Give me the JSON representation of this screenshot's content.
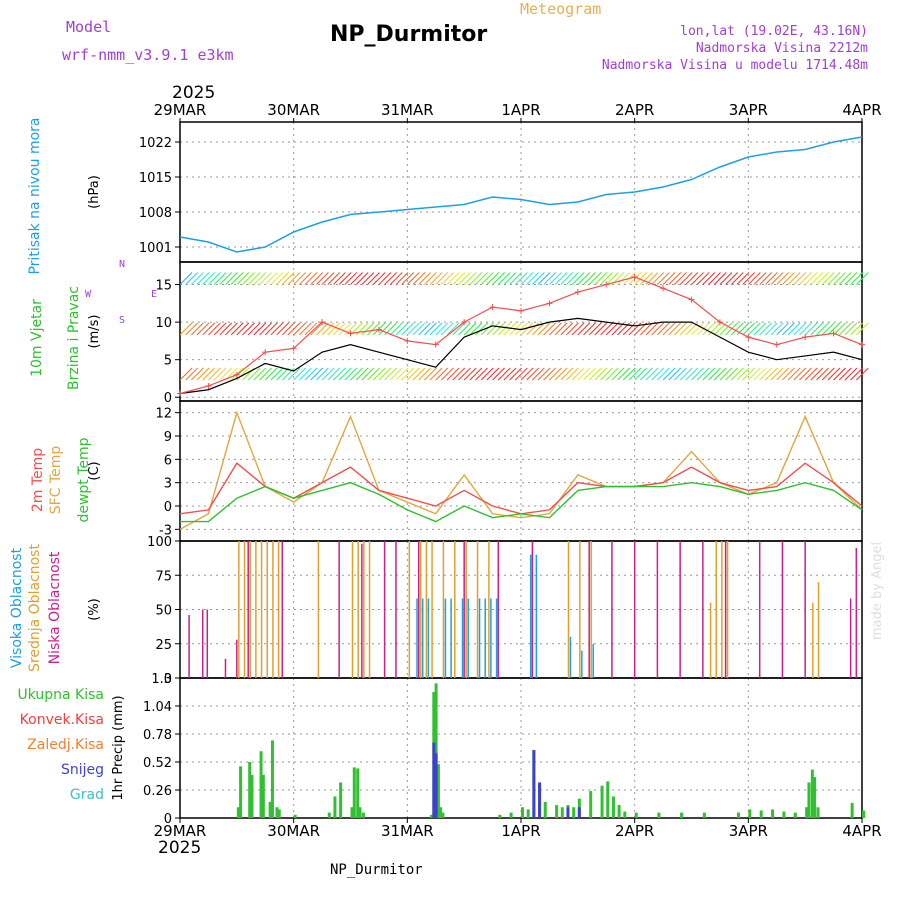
{
  "header": {
    "model_label": "Model",
    "model_name": "wrf-nmm_v3.9.1 e3km",
    "station": "NP_Durmitor",
    "meteogram": "Meteogram",
    "lonlat": "lon,lat (19.02E, 43.16N)",
    "altitude": "Nadmorska Visina 2212m",
    "model_altitude": "Nadmorska Visina u modelu 1714.48m"
  },
  "footer": {
    "station": "NP_Durmitor",
    "watermark": "made by Angel"
  },
  "time_axis": {
    "year": "2025",
    "labels": [
      "29MAR",
      "30MAR",
      "31MAR",
      "1APR",
      "2APR",
      "3APR",
      "4APR"
    ]
  },
  "colors": {
    "pressure": "#1ea0e0",
    "wind_speed": "#000000",
    "wind_gust": "#f05050",
    "temp2m": "#f05050",
    "sfc_temp": "#e0a840",
    "dewpt": "#30c030",
    "high_cloud": "#20a0e0",
    "mid_cloud": "#e0a030",
    "low_cloud": "#c8208c",
    "rain_total": "#30c030",
    "rain_conv": "#f04040",
    "freezing": "#f08030",
    "snow": "#4040d0",
    "hail": "#40c0c0"
  },
  "chart_data": [
    {
      "type": "line",
      "title": "Pritisak na nivou mora",
      "ylabel": "(hPa)",
      "ylim": [
        998,
        1026
      ],
      "yticks": [
        1001,
        1008,
        1015,
        1022
      ],
      "yticks_labels": [
        "1001",
        "1008",
        "1015",
        "1022"
      ],
      "x_days": [
        0,
        0.25,
        0.5,
        0.75,
        1,
        1.25,
        1.5,
        1.75,
        2,
        2.25,
        2.5,
        2.75,
        3,
        3.25,
        3.5,
        3.75,
        4,
        4.25,
        4.5,
        4.75,
        5,
        5.25,
        5.5,
        5.75,
        6
      ],
      "series": [
        {
          "name": "pressure",
          "values": [
            1003,
            1002,
            1000,
            1001,
            1004,
            1006,
            1007.5,
            1008,
            1008.5,
            1009,
            1009.5,
            1011,
            1010.5,
            1009.5,
            1010,
            1011.5,
            1012,
            1013,
            1014.5,
            1017,
            1019,
            1020,
            1020.5,
            1022,
            1023
          ]
        }
      ]
    },
    {
      "type": "line",
      "title": "10m Vjetar Brzina i Pravac",
      "ylabel": "(m/s)",
      "ylim": [
        -0.5,
        18
      ],
      "yticks": [
        0,
        5,
        10,
        15
      ],
      "yticks_labels": [
        "0",
        "5",
        "10",
        "15"
      ],
      "compass": [
        "N",
        "W",
        "E",
        "S"
      ],
      "x_days": [
        0,
        0.25,
        0.5,
        0.75,
        1,
        1.25,
        1.5,
        1.75,
        2,
        2.25,
        2.5,
        2.75,
        3,
        3.25,
        3.5,
        3.75,
        4,
        4.25,
        4.5,
        4.75,
        5,
        5.25,
        5.5,
        5.75,
        6
      ],
      "series": [
        {
          "name": "wind speed",
          "values": [
            0.5,
            1,
            2.5,
            4.5,
            3.5,
            6,
            7,
            6,
            5,
            4,
            8,
            9.5,
            9,
            10,
            10.5,
            10,
            9.5,
            10,
            10,
            8,
            6,
            5,
            5.5,
            6,
            5
          ]
        },
        {
          "name": "wind gust",
          "values": [
            0.5,
            1.5,
            3,
            6,
            6.5,
            10,
            8.5,
            9,
            7.5,
            7,
            10,
            12,
            11.5,
            12.5,
            14,
            15,
            16,
            14.5,
            13,
            10,
            8,
            7,
            8,
            8.5,
            7
          ]
        }
      ]
    },
    {
      "type": "line",
      "title": "2m Temp / SFC Temp / dewpt Temp",
      "ylabel": "(C)",
      "ylim": [
        -4.5,
        13.5
      ],
      "yticks": [
        -3,
        0,
        3,
        6,
        9,
        12
      ],
      "yticks_labels": [
        "-3",
        "0",
        "3",
        "6",
        "9",
        "12"
      ],
      "x_days": [
        0,
        0.25,
        0.5,
        0.75,
        1,
        1.25,
        1.5,
        1.75,
        2,
        2.25,
        2.5,
        2.75,
        3,
        3.25,
        3.5,
        3.75,
        4,
        4.25,
        4.5,
        4.75,
        5,
        5.25,
        5.5,
        5.75,
        6
      ],
      "series": [
        {
          "name": "2m Temp",
          "values": [
            -1,
            -0.5,
            5.5,
            2.5,
            1,
            3,
            5,
            2,
            1,
            0,
            2,
            0,
            -1,
            -0.5,
            3,
            2.5,
            2.5,
            3,
            5,
            3,
            2,
            2.5,
            5.5,
            3,
            0
          ]
        },
        {
          "name": "SFC Temp",
          "values": [
            -3,
            -1,
            12,
            2.5,
            0.5,
            3,
            11.5,
            2,
            0.5,
            -1,
            4,
            -1,
            -1.5,
            -1,
            4,
            2.5,
            2.5,
            3,
            7,
            3,
            1.5,
            3,
            11.5,
            3,
            -0.5
          ]
        },
        {
          "name": "dewpt Temp",
          "values": [
            -2,
            -2,
            1,
            2.5,
            1,
            2,
            3,
            1.5,
            -0.5,
            -2,
            0,
            -1.5,
            -1,
            -1.5,
            2,
            2.5,
            2.5,
            2.5,
            3,
            2.5,
            1.5,
            2,
            3,
            2,
            -0.5
          ]
        }
      ]
    },
    {
      "type": "bar",
      "title": "Visoka / Srednja / Niska Oblacnost",
      "ylabel": "(%)",
      "ylim": [
        0,
        100
      ],
      "yticks": [
        0,
        25,
        50,
        75,
        100
      ],
      "yticks_labels": [
        "0",
        "25",
        "50",
        "75",
        "100"
      ],
      "series": [
        {
          "name": "Niska Oblacnost",
          "x_days": [
            0.08,
            0.2,
            0.24,
            0.4,
            0.5,
            0.6,
            0.9,
            1.4,
            1.6,
            1.8,
            1.9,
            2.1,
            2.5,
            2.8,
            3.1,
            3.6,
            3.8,
            4.0,
            4.2,
            4.4,
            4.6,
            4.8,
            5.1,
            5.3,
            5.5,
            5.9,
            5.95
          ],
          "values": [
            46,
            50,
            50,
            14,
            28,
            100,
            100,
            100,
            98,
            100,
            100,
            100,
            100,
            100,
            100,
            100,
            100,
            100,
            100,
            100,
            100,
            100,
            100,
            100,
            100,
            58,
            95
          ]
        },
        {
          "name": "Srednja Oblacnost",
          "x_days": [
            0.5,
            0.55,
            0.6,
            0.65,
            0.7,
            0.75,
            0.8,
            0.85,
            1.2,
            1.5,
            1.55,
            1.6,
            1.65,
            2.0,
            2.1,
            2.15,
            2.2,
            2.3,
            2.4,
            2.5,
            2.6,
            2.7,
            3.4,
            3.5,
            3.6,
            4.65,
            4.7,
            4.75,
            4.8,
            5.55,
            5.6
          ],
          "values": [
            100,
            100,
            100,
            100,
            100,
            100,
            100,
            100,
            100,
            100,
            100,
            100,
            100,
            100,
            100,
            100,
            100,
            100,
            100,
            100,
            100,
            100,
            100,
            100,
            100,
            55,
            100,
            100,
            100,
            55,
            70
          ]
        },
        {
          "name": "Visoka Oblacnost",
          "x_days": [
            2.05,
            2.1,
            2.15,
            2.3,
            2.35,
            2.45,
            2.5,
            2.6,
            2.65,
            2.7,
            2.75,
            3.05,
            3.1,
            3.4,
            3.5,
            3.6
          ],
          "values": [
            58,
            58,
            58,
            58,
            58,
            58,
            58,
            58,
            58,
            58,
            58,
            90,
            90,
            30,
            20,
            25
          ]
        }
      ]
    },
    {
      "type": "bar",
      "title": "1hr Precip",
      "ylabel": "1hr Precip (mm)",
      "ylim": [
        0,
        1.3
      ],
      "yticks": [
        0,
        0.26,
        0.52,
        0.78,
        1.04,
        1.3
      ],
      "yticks_labels": [
        "0",
        "0.26",
        "0.52",
        "0.78",
        "1.04",
        "1.3"
      ],
      "series": [
        {
          "name": "Ukupna Kisa",
          "x_days": [
            0.5,
            0.52,
            0.6,
            0.62,
            0.7,
            0.72,
            0.78,
            0.8,
            0.84,
            0.86,
            1.0,
            1.3,
            1.35,
            1.4,
            1.5,
            1.52,
            1.55,
            1.57,
            1.6,
            2.2,
            2.22,
            2.24,
            2.26,
            2.28,
            2.3,
            2.8,
            2.9,
            3.0,
            3.05,
            3.1,
            3.15,
            3.2,
            3.3,
            3.35,
            3.4,
            3.45,
            3.5,
            3.6,
            3.7,
            3.75,
            3.8,
            3.85,
            3.9,
            4.0,
            4.2,
            4.4,
            4.6,
            4.9,
            5.0,
            5.1,
            5.2,
            5.3,
            5.4,
            5.5,
            5.52,
            5.55,
            5.57,
            5.6,
            5.9,
            6.0
          ],
          "values": [
            0.1,
            0.48,
            0.52,
            0.4,
            0.62,
            0.4,
            0.15,
            0.72,
            0.1,
            0.08,
            0.03,
            0.05,
            0.2,
            0.33,
            0.1,
            0.47,
            0.46,
            0.1,
            0.05,
            0.03,
            1.17,
            1.25,
            0.5,
            0.1,
            0.05,
            0.03,
            0.05,
            0.1,
            0.08,
            0.63,
            0.33,
            0.15,
            0.12,
            0.1,
            0.12,
            0.1,
            0.18,
            0.25,
            0.3,
            0.34,
            0.2,
            0.12,
            0.06,
            0.05,
            0.05,
            0.05,
            0.05,
            0.05,
            0.08,
            0.07,
            0.08,
            0.06,
            0.05,
            0.1,
            0.33,
            0.45,
            0.38,
            0.1,
            0.14,
            0.07
          ]
        },
        {
          "name": "Snijeg",
          "x_days": [
            2.22,
            2.24,
            3.1,
            3.15,
            3.4,
            3.5
          ],
          "values": [
            0.7,
            0.6,
            0.63,
            0.33,
            0.1,
            0.1
          ]
        }
      ]
    }
  ],
  "legends": {
    "pressure": "Pritisak na nivou mora",
    "wind1": "10m Vjetar",
    "wind2": "Brzina i Pravac",
    "t2m": "2m Temp",
    "sfc": "SFC Temp",
    "dew": "dewpt Temp",
    "visoka": "Visoka Oblacnost",
    "srednja": "Srednja Oblacnost",
    "niska": "Niska Oblacnost",
    "ukupna": "Ukupna Kisa",
    "konvek": "Konvek.Kisa",
    "zaledj": "Zaledj.Kisa",
    "snijeg": "Snijeg",
    "grad": "Grad"
  }
}
